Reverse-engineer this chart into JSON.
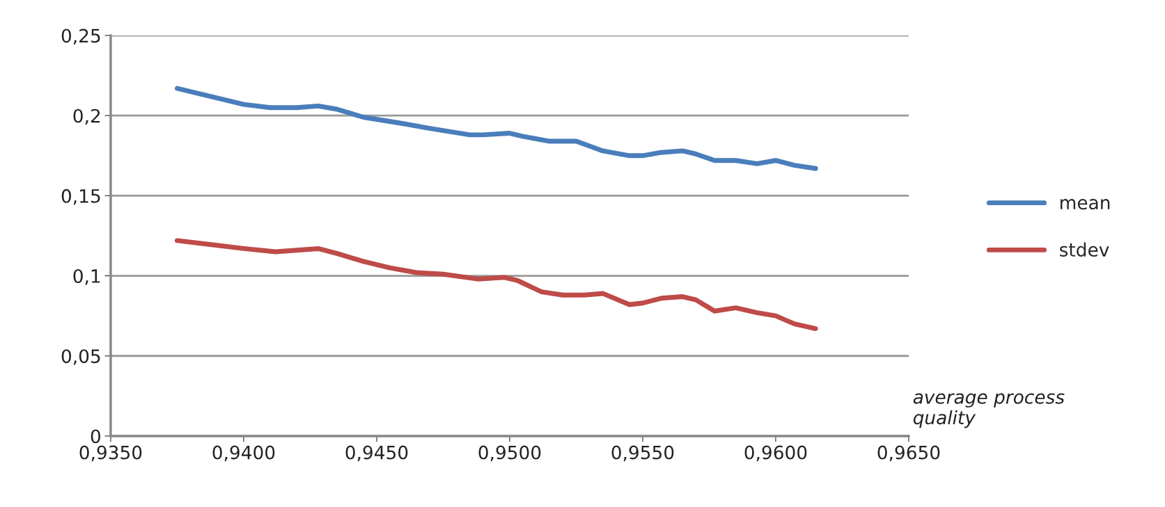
{
  "chart_data": {
    "type": "line",
    "xlabel": "average process quality",
    "xlim": [
      0.935,
      0.965
    ],
    "xticks": [
      {
        "value": 0.935,
        "label": "0,9350"
      },
      {
        "value": 0.94,
        "label": "0,9400"
      },
      {
        "value": 0.945,
        "label": "0,9450"
      },
      {
        "value": 0.95,
        "label": "0,9500"
      },
      {
        "value": 0.955,
        "label": "0,9550"
      },
      {
        "value": 0.96,
        "label": "0,9600"
      },
      {
        "value": 0.965,
        "label": "0,9650"
      }
    ],
    "ylim": [
      0,
      0.25
    ],
    "yticks": [
      0,
      {
        "value": 0.05,
        "label": "0,05"
      },
      {
        "value": 0.1,
        "label": "0,1"
      },
      {
        "value": 0.15,
        "label": "0,15"
      },
      {
        "value": 0.2,
        "label": "0,2"
      },
      {
        "value": 0.25,
        "label": "0,25"
      }
    ],
    "grid": "y",
    "legend": "right",
    "marker": "none",
    "line_style": "solid",
    "series": [
      {
        "name": "mean",
        "color": "#4a7ebb",
        "x": [
          0.9375,
          0.939,
          0.94,
          0.941,
          0.942,
          0.9428,
          0.9435,
          0.9445,
          0.946,
          0.947,
          0.9485,
          0.949,
          0.95,
          0.9505,
          0.9515,
          0.9525,
          0.9535,
          0.9545,
          0.955,
          0.9557,
          0.9565,
          0.957,
          0.9577,
          0.9585,
          0.9593,
          0.96,
          0.9607,
          0.9615
        ],
        "values": [
          0.217,
          0.211,
          0.207,
          0.205,
          0.205,
          0.206,
          0.204,
          0.199,
          0.195,
          0.192,
          0.188,
          0.188,
          0.189,
          0.187,
          0.184,
          0.184,
          0.178,
          0.175,
          0.175,
          0.177,
          0.178,
          0.176,
          0.172,
          0.172,
          0.17,
          0.172,
          0.169,
          0.167
        ]
      },
      {
        "name": "stdev",
        "color": "#be4b48",
        "x": [
          0.9375,
          0.939,
          0.94,
          0.9412,
          0.942,
          0.9428,
          0.9435,
          0.9445,
          0.9455,
          0.9465,
          0.9475,
          0.9488,
          0.9498,
          0.9503,
          0.9512,
          0.952,
          0.9528,
          0.9535,
          0.9545,
          0.955,
          0.9557,
          0.9565,
          0.957,
          0.9577,
          0.9585,
          0.9593,
          0.96,
          0.9607,
          0.9615
        ],
        "values": [
          0.122,
          0.119,
          0.117,
          0.115,
          0.116,
          0.117,
          0.114,
          0.109,
          0.105,
          0.102,
          0.101,
          0.098,
          0.099,
          0.097,
          0.09,
          0.088,
          0.088,
          0.089,
          0.082,
          0.083,
          0.086,
          0.087,
          0.085,
          0.078,
          0.08,
          0.077,
          0.075,
          0.07,
          0.067
        ]
      }
    ]
  }
}
